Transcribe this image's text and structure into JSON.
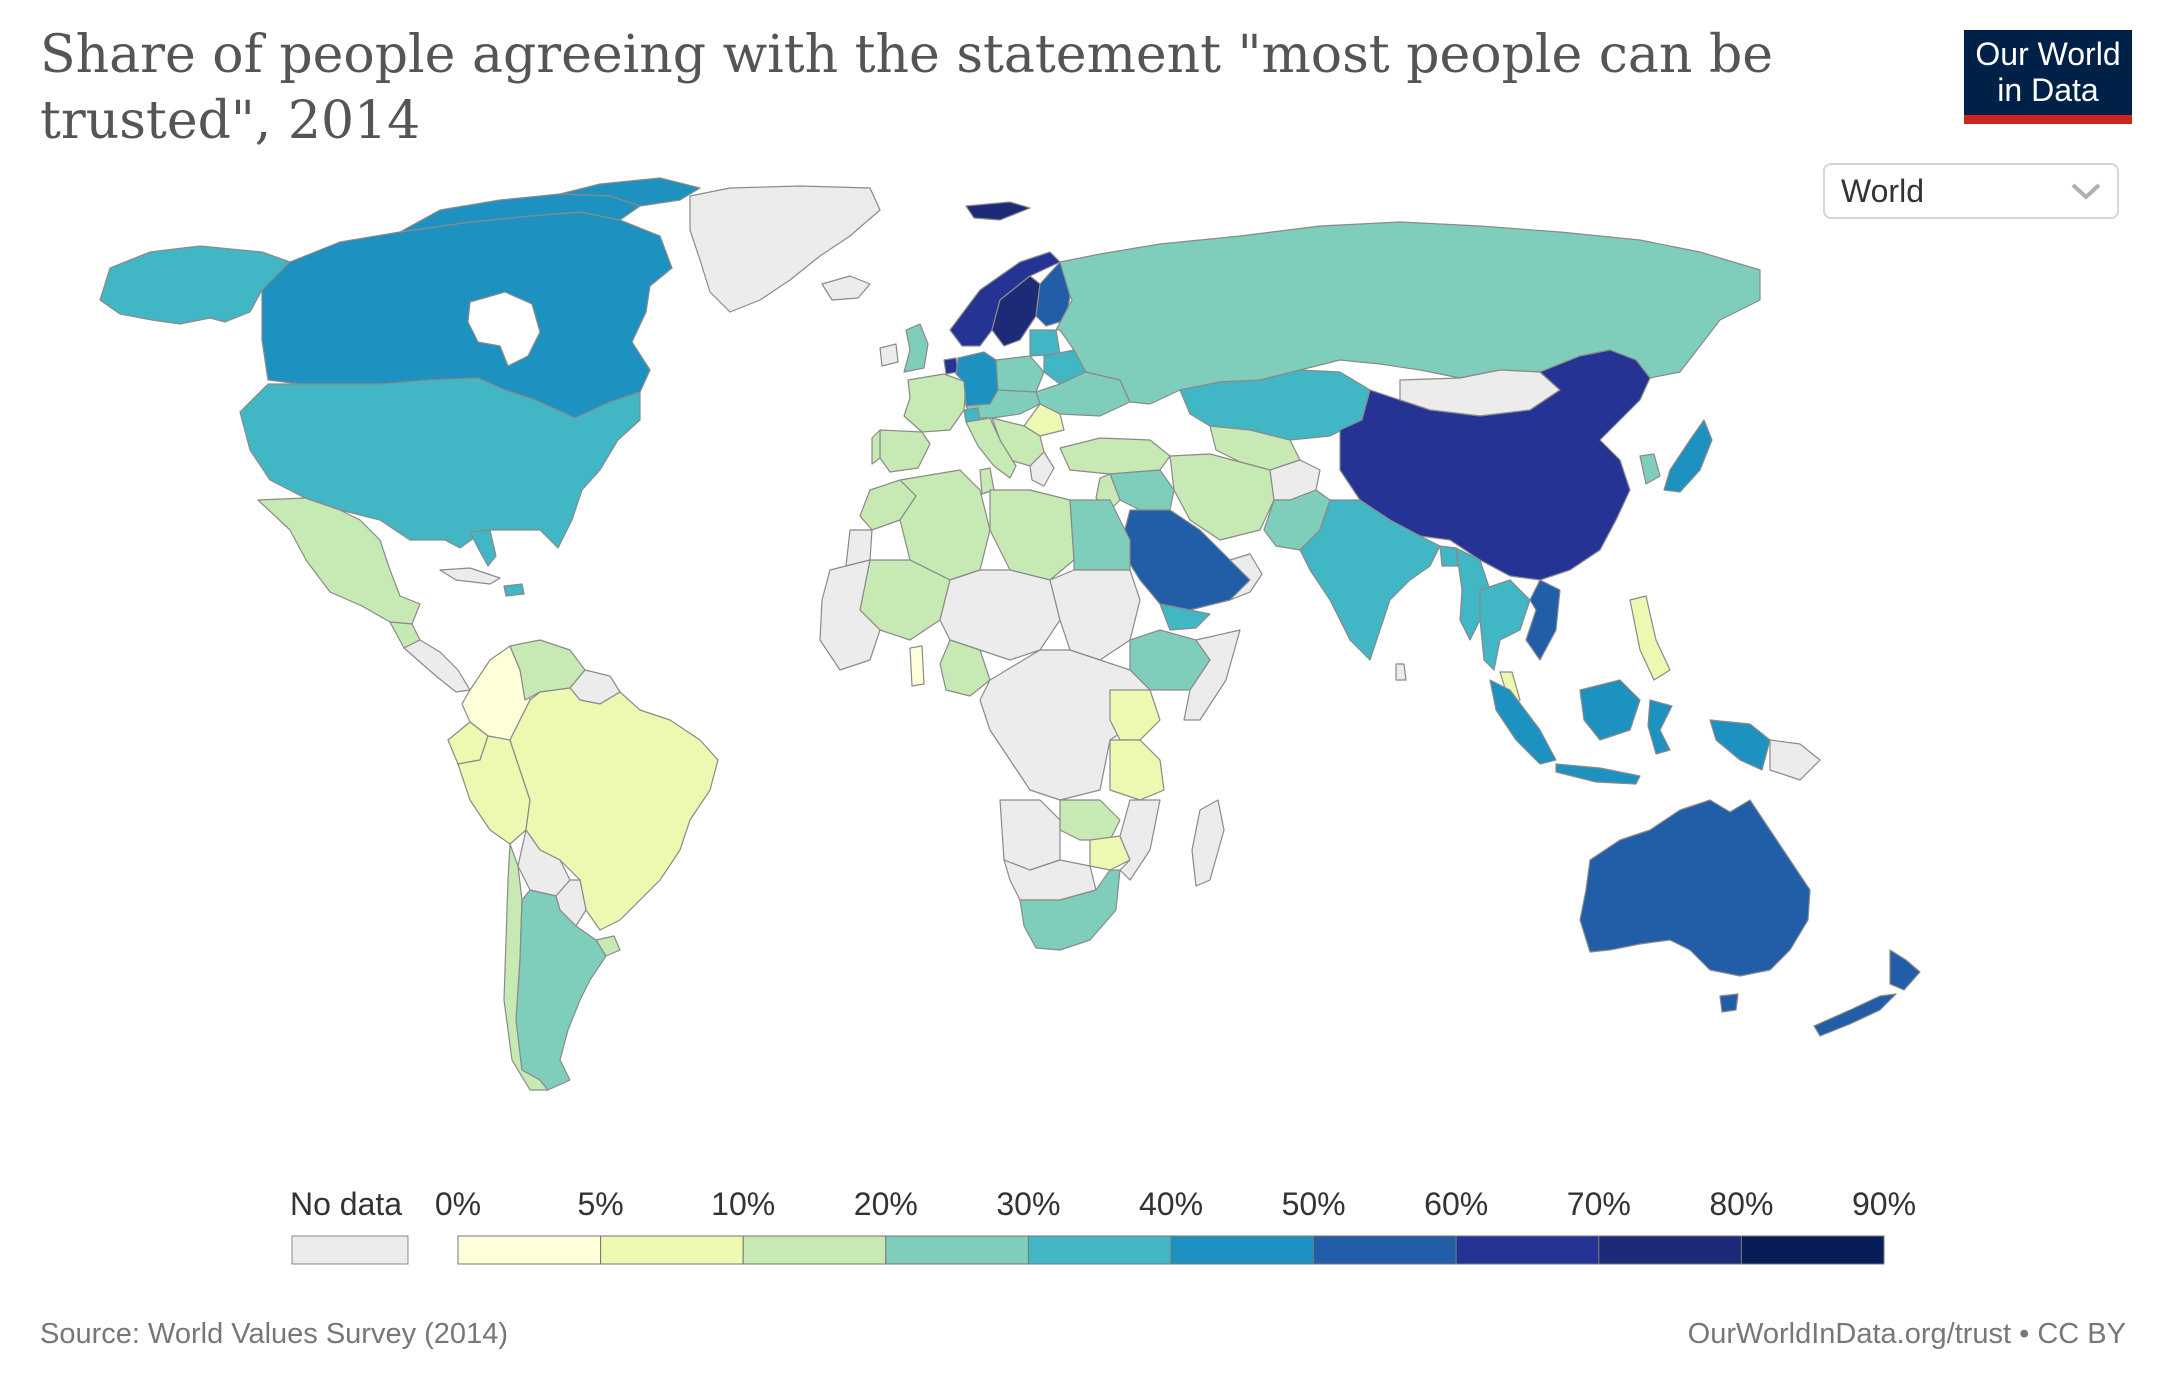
{
  "title": "Share of people agreeing with the statement \"most people can be trusted\", 2014",
  "logo": {
    "line1": "Our World",
    "line2": "in Data"
  },
  "region_selector": {
    "value": "World",
    "icon": "chevron-down-icon"
  },
  "legend": {
    "nodata_label": "No data",
    "nodata_color": "#ececec",
    "bins": [
      {
        "label": "0%",
        "color": "#ffffd9"
      },
      {
        "label": "5%",
        "color": "#edf8b1"
      },
      {
        "label": "10%",
        "color": "#c7e9b4"
      },
      {
        "label": "20%",
        "color": "#7fcdbb"
      },
      {
        "label": "30%",
        "color": "#41b6c4"
      },
      {
        "label": "40%",
        "color": "#1d91c0"
      },
      {
        "label": "50%",
        "color": "#225ea8"
      },
      {
        "label": "60%",
        "color": "#253494"
      },
      {
        "label": "70%",
        "color": "#1c2a78"
      },
      {
        "label": "80%",
        "color": "#081d58"
      }
    ],
    "end_label": "90%"
  },
  "footer": {
    "source": "Source: World Values Survey (2014)",
    "url": "OurWorldInData.org/trust • CC BY"
  }
}
